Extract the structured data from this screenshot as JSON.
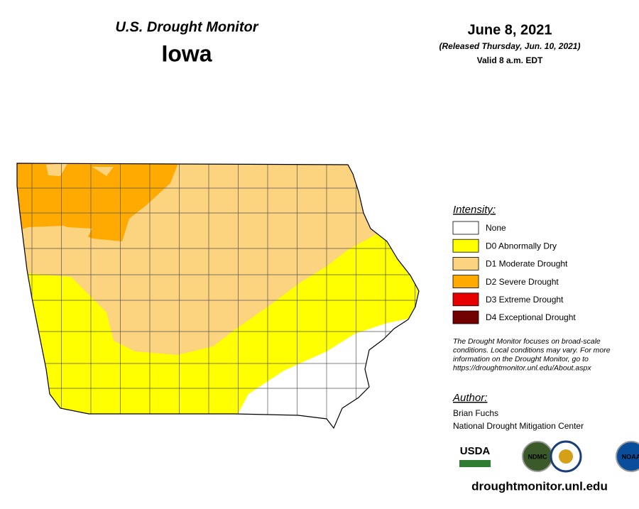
{
  "header": {
    "title": "U.S. Drought Monitor",
    "state": "Iowa",
    "date": "June 8, 2021",
    "released": "(Released Thursday, Jun. 10, 2021)",
    "valid": "Valid 8 a.m. EDT"
  },
  "legend": {
    "title": "Intensity:",
    "items": [
      {
        "label": "None",
        "color": "#ffffff"
      },
      {
        "label": "D0 Abnormally Dry",
        "color": "#ffff00"
      },
      {
        "label": "D1 Moderate Drought",
        "color": "#fcd37f"
      },
      {
        "label": "D2 Severe Drought",
        "color": "#ffaa00"
      },
      {
        "label": "D3 Extreme Drought",
        "color": "#e60000"
      },
      {
        "label": "D4 Exceptional Drought",
        "color": "#730000"
      }
    ]
  },
  "note": [
    "The Drought Monitor focuses on broad-scale",
    "conditions. Local conditions may vary. For more",
    "information on the Drought Monitor, go to",
    "https://droughtmonitor.unl.edu/About.aspx"
  ],
  "author": {
    "title": "Author:",
    "name": "Brian Fuchs",
    "org": "National Drought Mitigation Center"
  },
  "logos": [
    "USDA",
    "NDMC",
    "NOAA"
  ],
  "url": "droughtmonitor.unl.edu"
}
